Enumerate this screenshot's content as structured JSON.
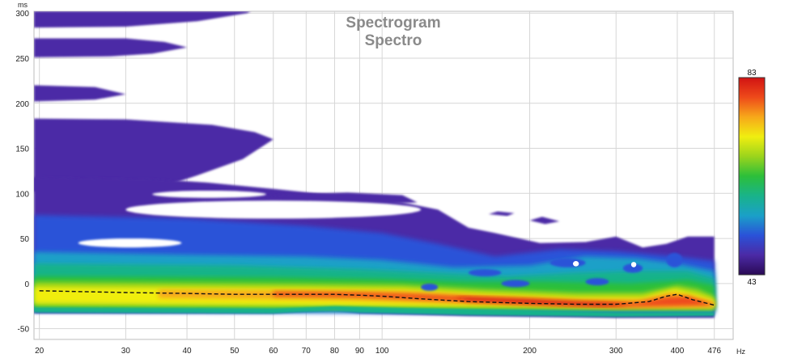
{
  "chart_data": {
    "type": "heatmap",
    "title": "Spectrogram",
    "subtitle": "Spectro",
    "x": {
      "label": "Hz",
      "scale": "log",
      "range": [
        19.5,
        520
      ],
      "ticks": [
        20,
        30,
        40,
        50,
        60,
        70,
        80,
        90,
        100,
        200,
        300,
        400,
        476
      ],
      "tick_labels": [
        "20",
        "30",
        "40",
        "50",
        "60",
        "70",
        "80",
        "90",
        "100",
        "200",
        "300",
        "400",
        "476"
      ]
    },
    "y": {
      "label": "ms",
      "range": [
        -62,
        302
      ],
      "ticks": [
        -50,
        0,
        50,
        100,
        150,
        200,
        250,
        300
      ],
      "tick_labels": [
        "-50",
        "0",
        "50",
        "100",
        "150",
        "200",
        "250",
        "300"
      ]
    },
    "colorbar": {
      "min": 43,
      "max": 83,
      "min_label": "43",
      "max_label": "83",
      "colors": [
        "#2a0a55",
        "#4b2aa6",
        "#2a52d8",
        "#1aa0c8",
        "#19b38a",
        "#2cbf3a",
        "#9bd41c",
        "#f0ee10",
        "#f7a81a",
        "#ee4a1a",
        "#d11313"
      ]
    },
    "peak_line": {
      "style": "dashed",
      "x": [
        20,
        30,
        40,
        50,
        60,
        70,
        80,
        90,
        100,
        120,
        150,
        200,
        250,
        300,
        350,
        380,
        400,
        430,
        476
      ],
      "y": [
        -8,
        -10,
        -11,
        -12,
        -12,
        -12,
        -12,
        -13,
        -14,
        -17,
        -20,
        -22,
        -23,
        -23,
        -20,
        -14,
        -12,
        -18,
        -24
      ]
    },
    "grid": true,
    "legend": "colorbar right"
  }
}
